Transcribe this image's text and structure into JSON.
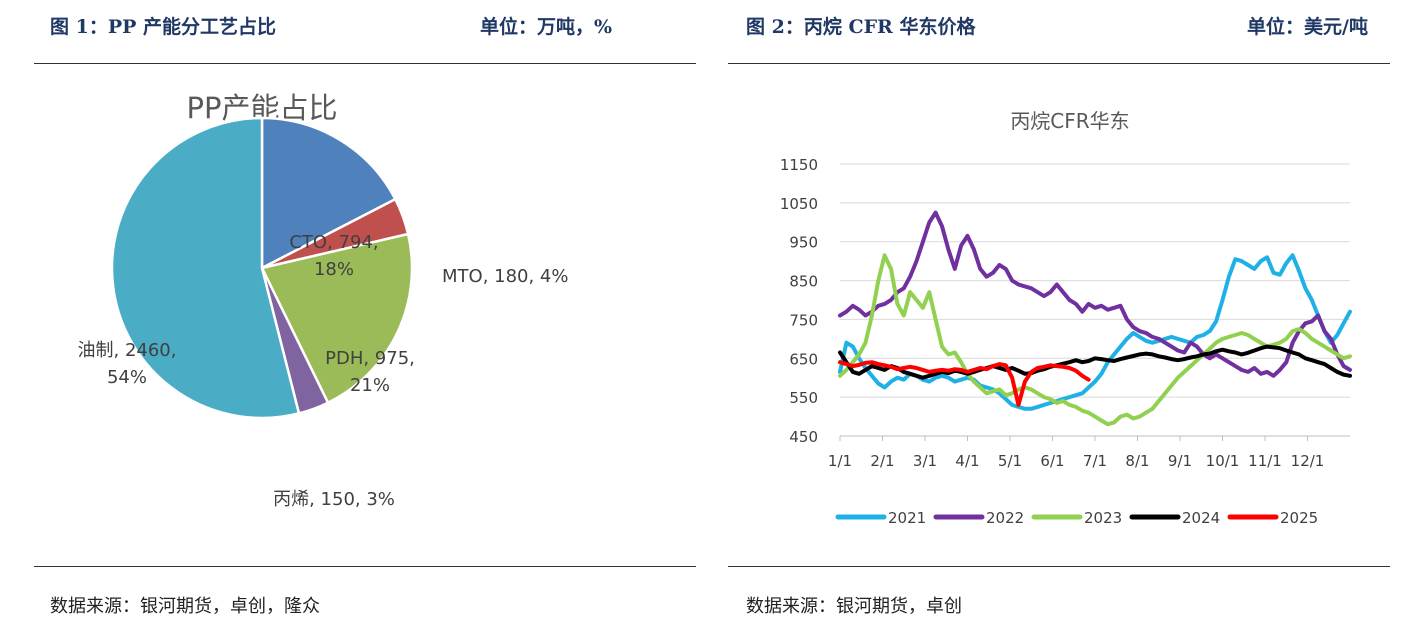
{
  "left_panel": {
    "figure_title": "图 1：PP 产能分工艺占比",
    "unit": "单位：万吨，%",
    "source": "数据来源：银河期货，卓创，隆众"
  },
  "right_panel": {
    "figure_title": "图 2：丙烷 CFR 华东价格",
    "unit": "单位：美元/吨",
    "source": "数据来源：银河期货，卓创"
  },
  "chart_data": [
    {
      "type": "pie",
      "title": "PP产能占比",
      "slices": [
        {
          "label": "CTO, 794,",
          "label2": "18%",
          "name": "CTO",
          "value": 794,
          "percent": 18,
          "color": "#4f81bd"
        },
        {
          "label": "MTO, 180, 4%",
          "name": "MTO",
          "value": 180,
          "percent": 4,
          "color": "#c0504d"
        },
        {
          "label": "PDH, 975,",
          "label2": "21%",
          "name": "PDH",
          "value": 975,
          "percent": 21,
          "color": "#9bbb59"
        },
        {
          "label": "丙烯, 150, 3%",
          "name": "丙烯",
          "value": 150,
          "percent": 3,
          "color": "#8064a2"
        },
        {
          "label": "油制, 2460,",
          "label2": "54%",
          "name": "油制",
          "value": 2460,
          "percent": 54,
          "color": "#4bacc6"
        }
      ]
    },
    {
      "type": "line",
      "title": "丙烷CFR华东",
      "xlabel": "",
      "ylabel": "",
      "x_ticks": [
        "1/1",
        "2/1",
        "3/1",
        "4/1",
        "5/1",
        "6/1",
        "7/1",
        "8/1",
        "9/1",
        "10/1",
        "11/1",
        "12/1"
      ],
      "y_ticks": [
        "1150",
        "1050",
        "950",
        "850",
        "750",
        "650",
        "550",
        "450"
      ],
      "ylim": [
        450,
        1150
      ],
      "xlim": [
        0,
        12
      ],
      "grid": true,
      "legend": "bottom",
      "series": [
        {
          "name": "2021",
          "color": "#1fb1e6",
          "x": [
            0,
            0.15,
            0.3,
            0.45,
            0.6,
            0.75,
            0.9,
            1.05,
            1.2,
            1.35,
            1.5,
            1.65,
            1.8,
            1.95,
            2.1,
            2.25,
            2.4,
            2.55,
            2.7,
            2.85,
            3.0,
            3.15,
            3.3,
            3.45,
            3.6,
            3.75,
            3.9,
            4.05,
            4.2,
            4.35,
            4.5,
            4.65,
            4.8,
            4.95,
            5.1,
            5.25,
            5.4,
            5.55,
            5.7,
            5.85,
            6.0,
            6.15,
            6.3,
            6.45,
            6.6,
            6.75,
            6.9,
            7.05,
            7.2,
            7.35,
            7.5,
            7.65,
            7.8,
            7.95,
            8.1,
            8.25,
            8.4,
            8.55,
            8.7,
            8.85,
            9.0,
            9.15,
            9.3,
            9.45,
            9.6,
            9.75,
            9.9,
            10.05,
            10.2,
            10.35,
            10.5,
            10.65,
            10.8,
            10.95,
            11.1,
            11.25,
            11.4,
            11.55,
            11.7,
            11.85,
            12.0
          ],
          "y": [
            615,
            690,
            680,
            650,
            625,
            605,
            585,
            575,
            590,
            600,
            595,
            610,
            605,
            595,
            590,
            600,
            605,
            600,
            590,
            595,
            600,
            595,
            580,
            575,
            570,
            560,
            545,
            530,
            525,
            520,
            520,
            525,
            530,
            535,
            540,
            545,
            550,
            555,
            560,
            575,
            590,
            610,
            640,
            660,
            680,
            700,
            715,
            705,
            695,
            690,
            695,
            700,
            705,
            700,
            695,
            690,
            705,
            710,
            720,
            745,
            800,
            860,
            905,
            900,
            890,
            880,
            900,
            910,
            870,
            865,
            895,
            915,
            875,
            830,
            800,
            760,
            720,
            690,
            710,
            740,
            770
          ]
        },
        {
          "name": "2022",
          "color": "#7030a0",
          "x": [
            0,
            0.15,
            0.3,
            0.45,
            0.6,
            0.75,
            0.9,
            1.05,
            1.2,
            1.35,
            1.5,
            1.65,
            1.8,
            1.95,
            2.1,
            2.25,
            2.4,
            2.55,
            2.7,
            2.85,
            3.0,
            3.15,
            3.3,
            3.45,
            3.6,
            3.75,
            3.9,
            4.05,
            4.2,
            4.35,
            4.5,
            4.65,
            4.8,
            4.95,
            5.1,
            5.25,
            5.4,
            5.55,
            5.7,
            5.85,
            6.0,
            6.15,
            6.3,
            6.45,
            6.6,
            6.75,
            6.9,
            7.05,
            7.2,
            7.35,
            7.5,
            7.65,
            7.8,
            7.95,
            8.1,
            8.25,
            8.4,
            8.55,
            8.7,
            8.85,
            9.0,
            9.15,
            9.3,
            9.45,
            9.6,
            9.75,
            9.9,
            10.05,
            10.2,
            10.35,
            10.5,
            10.65,
            10.8,
            10.95,
            11.1,
            11.25,
            11.4,
            11.55,
            11.7,
            11.85,
            12.0
          ],
          "y": [
            760,
            770,
            785,
            775,
            760,
            770,
            785,
            790,
            800,
            820,
            830,
            860,
            900,
            950,
            1000,
            1025,
            990,
            930,
            880,
            940,
            965,
            930,
            880,
            860,
            870,
            890,
            880,
            850,
            840,
            835,
            830,
            820,
            810,
            820,
            840,
            820,
            800,
            790,
            770,
            790,
            780,
            785,
            775,
            780,
            785,
            750,
            730,
            720,
            715,
            705,
            700,
            690,
            680,
            670,
            665,
            690,
            680,
            660,
            650,
            660,
            650,
            640,
            630,
            620,
            615,
            625,
            610,
            615,
            605,
            620,
            640,
            690,
            720,
            740,
            745,
            760,
            720,
            700,
            660,
            630,
            620
          ]
        },
        {
          "name": "2023",
          "color": "#92d050",
          "x": [
            0,
            0.15,
            0.3,
            0.45,
            0.6,
            0.75,
            0.9,
            1.05,
            1.2,
            1.35,
            1.5,
            1.65,
            1.8,
            1.95,
            2.1,
            2.25,
            2.4,
            2.55,
            2.7,
            2.85,
            3.0,
            3.15,
            3.3,
            3.45,
            3.6,
            3.75,
            3.9,
            4.05,
            4.2,
            4.35,
            4.5,
            4.65,
            4.8,
            4.95,
            5.1,
            5.25,
            5.4,
            5.55,
            5.7,
            5.85,
            6.0,
            6.15,
            6.3,
            6.45,
            6.6,
            6.75,
            6.9,
            7.05,
            7.2,
            7.35,
            7.5,
            7.65,
            7.8,
            7.95,
            8.1,
            8.25,
            8.4,
            8.55,
            8.7,
            8.85,
            9.0,
            9.15,
            9.3,
            9.45,
            9.6,
            9.75,
            9.9,
            10.05,
            10.2,
            10.35,
            10.5,
            10.65,
            10.8,
            10.95,
            11.1,
            11.25,
            11.4,
            11.55,
            11.7,
            11.85,
            12.0
          ],
          "y": [
            605,
            620,
            640,
            660,
            690,
            760,
            850,
            915,
            880,
            790,
            760,
            820,
            800,
            780,
            820,
            750,
            680,
            660,
            665,
            640,
            610,
            590,
            575,
            560,
            565,
            570,
            555,
            560,
            570,
            575,
            570,
            560,
            550,
            545,
            535,
            540,
            530,
            525,
            515,
            510,
            500,
            490,
            480,
            485,
            500,
            505,
            495,
            500,
            510,
            520,
            540,
            560,
            580,
            600,
            615,
            630,
            645,
            660,
            675,
            690,
            700,
            705,
            710,
            715,
            710,
            700,
            690,
            680,
            685,
            690,
            700,
            720,
            725,
            715,
            700,
            690,
            680,
            670,
            660,
            650,
            655
          ]
        },
        {
          "name": "2024",
          "color": "#000000",
          "x": [
            0,
            0.15,
            0.3,
            0.45,
            0.6,
            0.75,
            0.9,
            1.05,
            1.2,
            1.35,
            1.5,
            1.65,
            1.8,
            1.95,
            2.1,
            2.25,
            2.4,
            2.55,
            2.7,
            2.85,
            3.0,
            3.15,
            3.3,
            3.45,
            3.6,
            3.75,
            3.9,
            4.05,
            4.2,
            4.35,
            4.5,
            4.65,
            4.8,
            4.95,
            5.1,
            5.25,
            5.4,
            5.55,
            5.7,
            5.85,
            6.0,
            6.15,
            6.3,
            6.45,
            6.6,
            6.75,
            6.9,
            7.05,
            7.2,
            7.35,
            7.5,
            7.65,
            7.8,
            7.95,
            8.1,
            8.25,
            8.4,
            8.55,
            8.7,
            8.85,
            9.0,
            9.15,
            9.3,
            9.45,
            9.6,
            9.75,
            9.9,
            10.05,
            10.2,
            10.35,
            10.5,
            10.65,
            10.8,
            10.95,
            11.1,
            11.25,
            11.4,
            11.55,
            11.7,
            11.85,
            12.0
          ],
          "y": [
            665,
            640,
            615,
            610,
            620,
            630,
            625,
            620,
            630,
            625,
            615,
            610,
            605,
            600,
            605,
            610,
            615,
            612,
            618,
            615,
            610,
            615,
            620,
            625,
            630,
            625,
            620,
            625,
            618,
            610,
            612,
            618,
            622,
            628,
            632,
            636,
            640,
            645,
            640,
            643,
            650,
            648,
            645,
            643,
            648,
            652,
            656,
            660,
            662,
            660,
            655,
            652,
            648,
            645,
            648,
            652,
            655,
            660,
            662,
            668,
            672,
            668,
            665,
            660,
            664,
            670,
            676,
            680,
            678,
            676,
            670,
            665,
            660,
            650,
            645,
            640,
            635,
            625,
            615,
            608,
            605
          ]
        },
        {
          "name": "2025",
          "color": "#ff0000",
          "x": [
            0,
            0.15,
            0.3,
            0.45,
            0.6,
            0.75,
            0.9,
            1.05,
            1.2,
            1.35,
            1.5,
            1.65,
            1.8,
            1.95,
            2.1,
            2.25,
            2.4,
            2.55,
            2.7,
            2.85,
            3.0,
            3.15,
            3.3,
            3.45,
            3.6,
            3.75,
            3.9,
            4.05,
            4.2,
            4.35,
            4.5,
            4.65,
            4.8,
            4.95,
            5.1,
            5.25,
            5.4,
            5.55,
            5.7,
            5.85
          ],
          "y": [
            640,
            635,
            630,
            633,
            638,
            640,
            635,
            632,
            628,
            622,
            625,
            628,
            625,
            620,
            615,
            618,
            620,
            618,
            622,
            620,
            615,
            620,
            625,
            622,
            630,
            635,
            632,
            600,
            530,
            590,
            615,
            625,
            628,
            632,
            630,
            628,
            625,
            618,
            605,
            595
          ]
        }
      ]
    }
  ]
}
